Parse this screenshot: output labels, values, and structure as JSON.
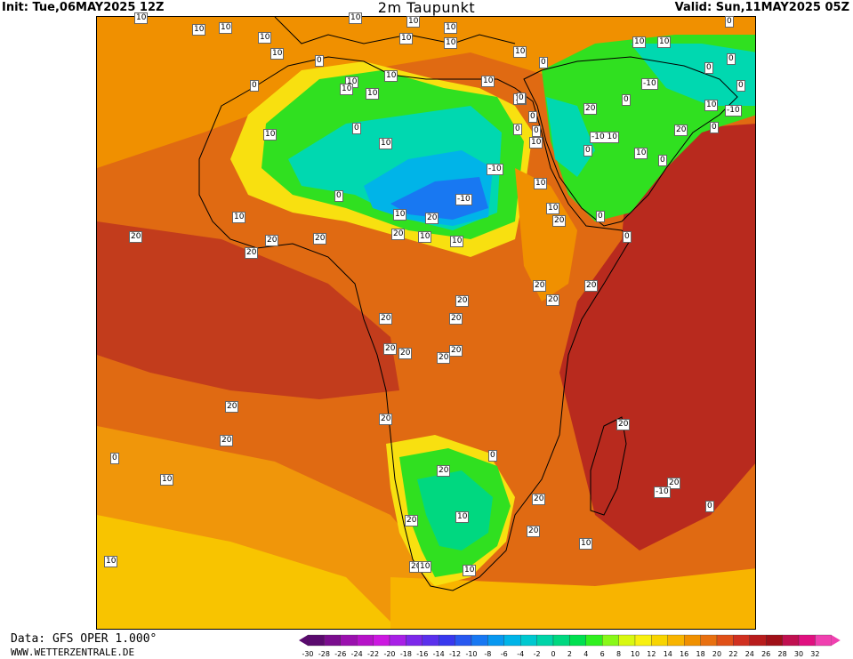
{
  "header": {
    "init": "Init: Tue,06MAY2025 12Z",
    "title": "2m Taupunkt",
    "valid": "Valid: Sun,11MAY2025 05Z"
  },
  "footer": {
    "data_source": "Data: GFS OPER 1.000°",
    "url": "WWW.WETTERZENTRALE.DE"
  },
  "legend": {
    "ticks": [
      "-30",
      "-28",
      "-26",
      "-24",
      "-22",
      "-20",
      "-18",
      "-16",
      "-14",
      "-12",
      "-10",
      "-8",
      "-6",
      "-4",
      "-2",
      "0",
      "2",
      "4",
      "6",
      "8",
      "10",
      "12",
      "14",
      "16",
      "18",
      "20",
      "22",
      "24",
      "26",
      "28",
      "30",
      "32"
    ],
    "colors": [
      "#5a0a6e",
      "#7a0d8e",
      "#9a10ae",
      "#b612c8",
      "#cc18e0",
      "#a820e6",
      "#7c28ea",
      "#5a30ec",
      "#3838ee",
      "#2858f0",
      "#1878f2",
      "#0898f0",
      "#00b4e8",
      "#00c8d0",
      "#00d4a8",
      "#00d880",
      "#00e050",
      "#30f020",
      "#88f818",
      "#d8f810",
      "#f8f010",
      "#f8d400",
      "#f8b400",
      "#f09000",
      "#e87010",
      "#e05018",
      "#d03020",
      "#b81c1c",
      "#a01018",
      "#c01050",
      "#e01080",
      "#f040b0"
    ]
  },
  "map": {
    "labels": [
      "10",
      "10",
      "10",
      "10",
      "10",
      "10",
      "10",
      "10",
      "10",
      "10",
      "0",
      "10",
      "10",
      "10",
      "10",
      "10",
      "0",
      "10",
      "0",
      "10",
      "0",
      "10",
      "10",
      "0",
      "0",
      "0",
      "0",
      "10",
      "0",
      "0",
      "10",
      "0",
      "-10",
      "0",
      "0",
      "10",
      "-10",
      "20",
      "-10 10",
      "10",
      "0",
      "0",
      "10",
      "20",
      "0",
      "-10",
      "10",
      "0",
      "-10",
      "10",
      "10",
      "0",
      "20",
      "20",
      "20",
      "10",
      "10",
      "0",
      "10",
      "20",
      "20",
      "20",
      "20",
      "20",
      "20",
      "20",
      "20",
      "20",
      "20",
      "20",
      "20",
      "20",
      "20",
      "20",
      "20",
      "20",
      "20",
      "0",
      "10",
      "20",
      "0",
      "20",
      "-10",
      "20",
      "0",
      "20",
      "10",
      "20",
      "10",
      "20",
      "10",
      "10",
      "10"
    ]
  }
}
